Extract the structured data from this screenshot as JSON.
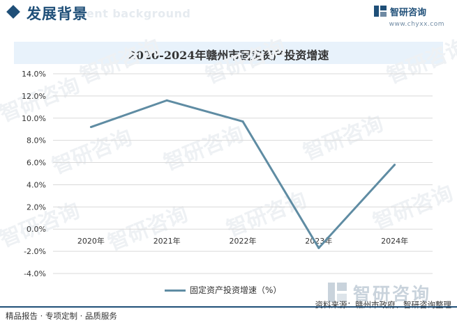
{
  "header": {
    "title": "发展背景",
    "watermark": "nent background",
    "brand_name": "智研咨询",
    "brand_url": "www.chyxx.com"
  },
  "chart_data": {
    "type": "line",
    "title": "2020-2024年赣州市固定资产投资增速",
    "categories": [
      "2020年",
      "2021年",
      "2022年",
      "2023年",
      "2024年"
    ],
    "series": [
      {
        "name": "固定资产投资增速（%）",
        "values": [
          9.2,
          11.6,
          9.7,
          -1.7,
          5.8
        ]
      }
    ],
    "ylim": [
      -4,
      14
    ],
    "ytick_step": 2,
    "ytick_labels": [
      "14.0%",
      "12.0%",
      "10.0%",
      "8.0%",
      "6.0%",
      "4.0%",
      "2.0%",
      "0.0%",
      "-2.0%",
      "-4.0%"
    ],
    "grid": true,
    "legend": "bottom",
    "line_color": "#5f8ca3"
  },
  "watermark_text": "智研咨询",
  "footer": {
    "left": "精品报告 · 专项定制 · 品质服务",
    "right": "资料来源：赣州市政府、智研咨询整理"
  }
}
